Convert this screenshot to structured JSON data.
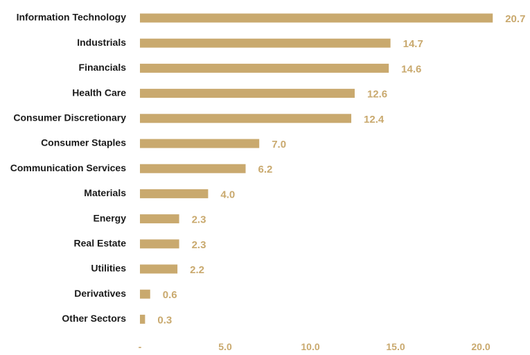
{
  "chart_data": {
    "type": "bar",
    "orientation": "horizontal",
    "categories": [
      "Information Technology",
      "Industrials",
      "Financials",
      "Health Care",
      "Consumer Discretionary",
      "Consumer Staples",
      "Communication Services",
      "Materials",
      "Energy",
      "Real Estate",
      "Utilities",
      "Derivatives",
      "Other Sectors"
    ],
    "values": [
      20.7,
      14.7,
      14.6,
      12.6,
      12.4,
      7.0,
      6.2,
      4.0,
      2.3,
      2.3,
      2.2,
      0.6,
      0.3
    ],
    "data_labels": [
      "20.7",
      "14.7",
      "14.6",
      "12.6",
      "12.4",
      "7.0",
      "6.2",
      "4.0",
      "2.3",
      "2.3",
      "2.2",
      "0.6",
      "0.3"
    ],
    "xticks": [
      {
        "value": 0,
        "label": "-"
      },
      {
        "value": 5,
        "label": "5.0"
      },
      {
        "value": 10,
        "label": "10.0"
      },
      {
        "value": 15,
        "label": "15.0"
      },
      {
        "value": 20,
        "label": "20.0"
      }
    ],
    "xlim": [
      0,
      22.2
    ],
    "title": "",
    "xlabel": "",
    "ylabel": "",
    "grid": false,
    "legend": "none",
    "colors": {
      "bar": "#c9a96e",
      "value_label": "#c9a96e",
      "tick_label": "#c9a96e",
      "category_label": "#1a1a1a"
    }
  }
}
